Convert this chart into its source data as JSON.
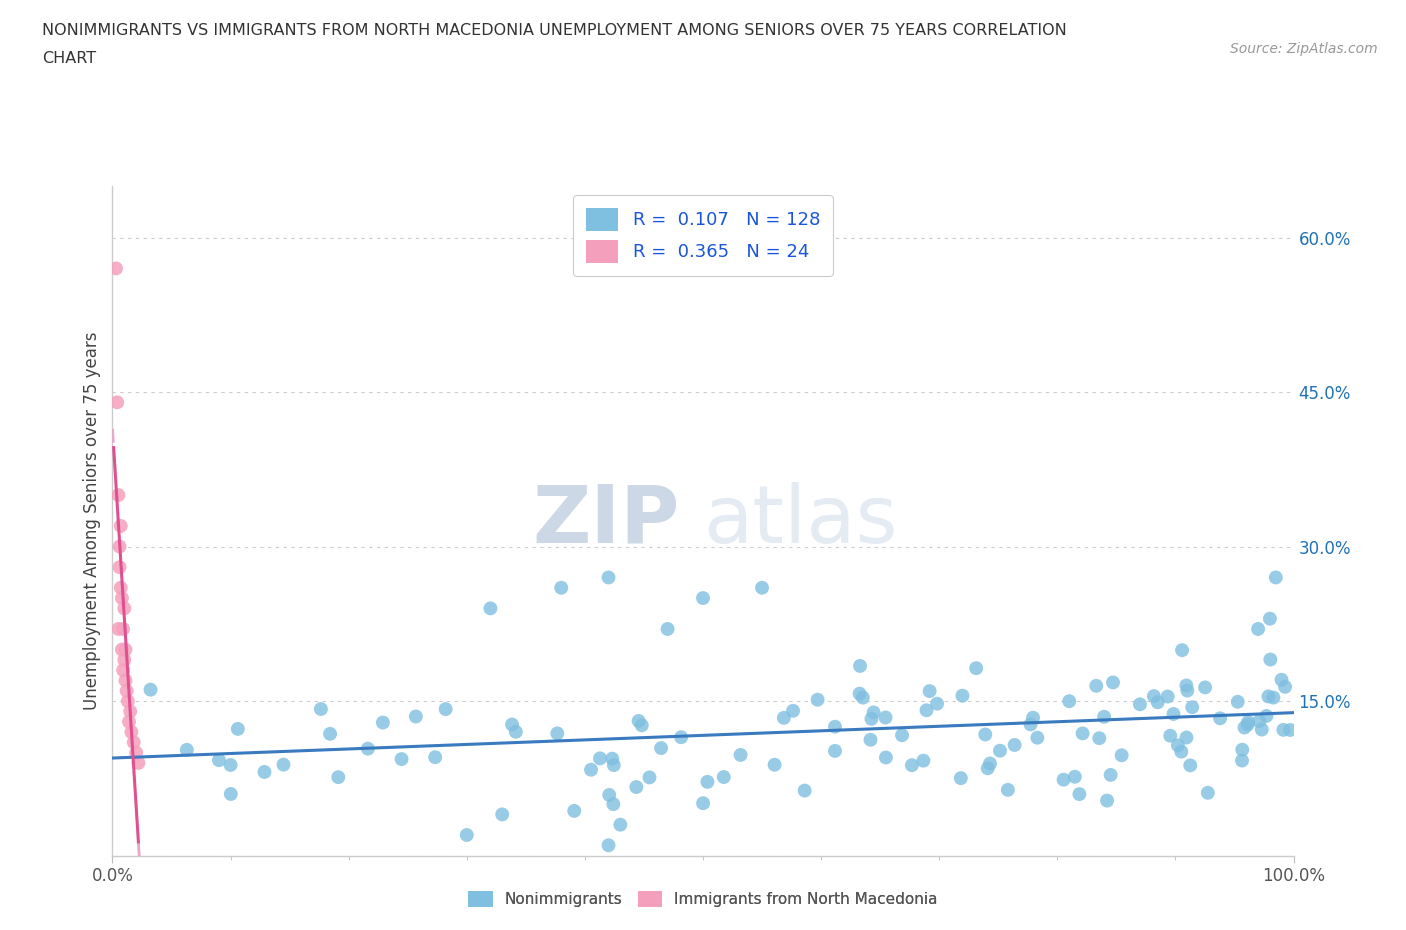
{
  "title_line1": "NONIMMIGRANTS VS IMMIGRANTS FROM NORTH MACEDONIA UNEMPLOYMENT AMONG SENIORS OVER 75 YEARS CORRELATION",
  "title_line2": "CHART",
  "source_text": "Source: ZipAtlas.com",
  "ylabel": "Unemployment Among Seniors over 75 years",
  "xlim": [
    0.0,
    1.0
  ],
  "ylim": [
    0.0,
    0.65
  ],
  "blue_color": "#7fbfdf",
  "pink_color": "#f4a0bc",
  "blue_line_color": "#3a7abf",
  "pink_line_color": "#e05090",
  "pink_dash_color": "#e8a8c8",
  "legend_text_color": "#1a56db",
  "watermark_zip_color": "#b8cce4",
  "watermark_atlas_color": "#c8daf0",
  "R_blue": 0.107,
  "N_blue": 128,
  "R_pink": 0.365,
  "N_pink": 24
}
